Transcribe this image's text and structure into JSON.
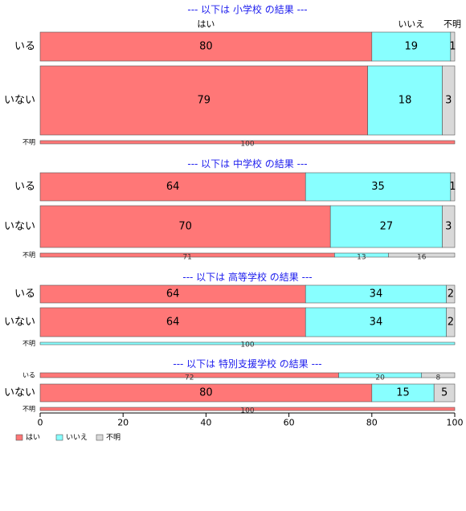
{
  "colors": {
    "はい": "#ff7777",
    "いいえ": "#88ffff",
    "不明": "#d9d9d9"
  },
  "chart_data": {
    "type": "bar",
    "orientation": "horizontal",
    "stacked": true,
    "xlim": [
      0,
      100
    ],
    "xticks": [
      0,
      20,
      40,
      60,
      80,
      100
    ],
    "legend": {
      "position": "bottom-left",
      "entries": [
        "はい",
        "いいえ",
        "不明"
      ]
    },
    "column_labels": [
      "はい",
      "いいえ",
      "不明"
    ],
    "panels": [
      {
        "title": "--- 以下は 小学校 の結果 ---",
        "rows": [
          {
            "label": "いる",
            "values": [
              80,
              19,
              1
            ]
          },
          {
            "label": "いない",
            "values": [
              79,
              18,
              3
            ]
          },
          {
            "label": "不明",
            "values": [
              100,
              0,
              0
            ]
          }
        ]
      },
      {
        "title": "--- 以下は 中学校 の結果 ---",
        "rows": [
          {
            "label": "いる",
            "values": [
              64,
              35,
              1
            ]
          },
          {
            "label": "いない",
            "values": [
              70,
              27,
              3
            ]
          },
          {
            "label": "不明",
            "values": [
              71,
              13,
              16
            ]
          }
        ]
      },
      {
        "title": "--- 以下は 高等学校 の結果 ---",
        "rows": [
          {
            "label": "いる",
            "values": [
              64,
              34,
              2
            ]
          },
          {
            "label": "いない",
            "values": [
              64,
              34,
              2
            ]
          },
          {
            "label": "不明",
            "values": [
              0,
              100,
              0
            ]
          }
        ]
      },
      {
        "title": "--- 以下は 特別支援学校 の結果 ---",
        "rows": [
          {
            "label": "いる",
            "values": [
              72,
              20,
              8
            ]
          },
          {
            "label": "いない",
            "values": [
              80,
              15,
              5
            ]
          },
          {
            "label": "不明",
            "values": [
              100,
              0,
              0
            ]
          }
        ]
      }
    ]
  }
}
